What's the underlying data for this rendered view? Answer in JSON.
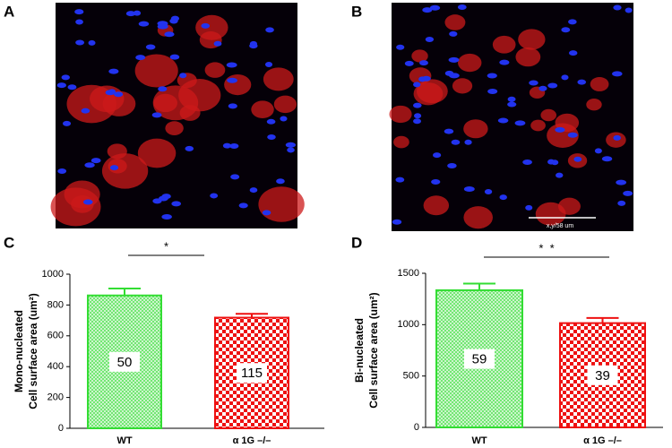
{
  "figure": {
    "panel_labels": [
      "A",
      "B",
      "C",
      "D"
    ],
    "scale_bar_label": "x,y/58 um"
  },
  "chart_data": [
    {
      "type": "bar",
      "ylabel": [
        "Mono-nucleated",
        "Cell surface area (um²)"
      ],
      "categories": [
        "WT",
        "α 1G –/–"
      ],
      "values": [
        862,
        718
      ],
      "errors": [
        45,
        25
      ],
      "colors": [
        "#33dd33",
        "#ee1111"
      ],
      "bar_annotations": [
        50,
        115
      ],
      "significance": "*",
      "ylim": [
        0,
        1000
      ],
      "yticks": [
        0,
        200,
        400,
        600,
        800,
        1000
      ]
    },
    {
      "type": "bar",
      "ylabel": [
        "Bi-nucleated",
        "Cell surface area (um²)"
      ],
      "categories": [
        "WT",
        "α 1G –/–"
      ],
      "values": [
        1335,
        1015
      ],
      "errors": [
        65,
        50
      ],
      "colors": [
        "#33dd33",
        "#ee1111"
      ],
      "bar_annotations": [
        59,
        39
      ],
      "significance": "*  *",
      "ylim": [
        0,
        1500
      ],
      "yticks": [
        0,
        500,
        1000,
        1500
      ]
    }
  ]
}
